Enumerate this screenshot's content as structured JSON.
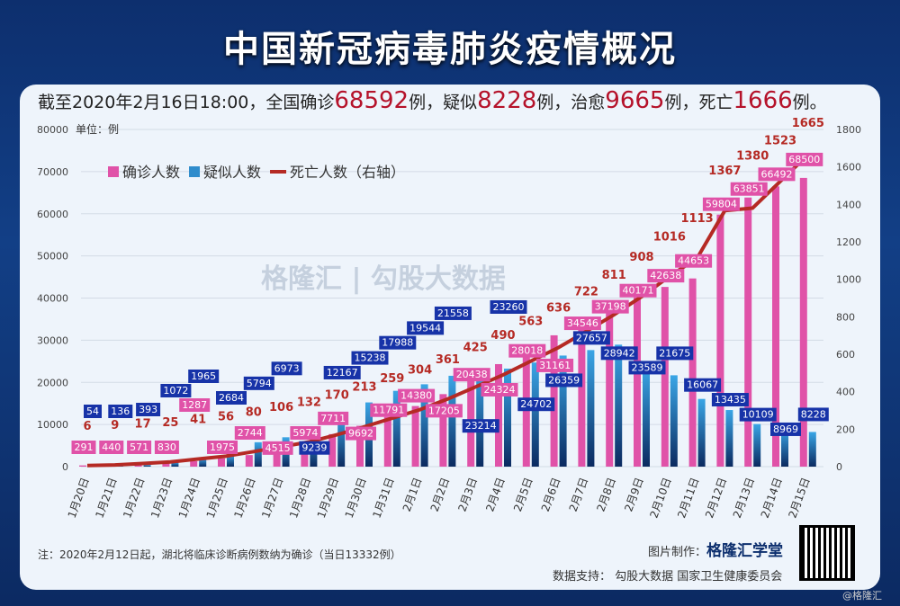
{
  "title": "中国新冠病毒肺炎疫情概况",
  "summary": {
    "prefix": "截至2020年2月16日18:00，全国确诊",
    "confirmed": "68592",
    "s1": "例，疑似",
    "suspected": "8228",
    "s2": "例，治愈",
    "cured": "9665",
    "s3": "例，死亡",
    "deaths": "1666",
    "s4": "例。"
  },
  "note": "注：2020年2月12日起，湖北将临床诊断病例数纳为确诊（当日13332例）",
  "maker_label": "图片制作：",
  "maker": "格隆汇学堂",
  "source": "数据支持：  勾股大数据  国家卫生健康委员会",
  "credit": "@格隆汇",
  "watermark": "格隆汇 | 勾股大数据",
  "chart_data": {
    "type": "bar",
    "unit_label": "单位：例",
    "categories": [
      "1月20日",
      "1月21日",
      "1月22日",
      "1月23日",
      "1月24日",
      "1月25日",
      "1月26日",
      "1月27日",
      "1月28日",
      "1月29日",
      "1月30日",
      "1月31日",
      "2月1日",
      "2月2日",
      "2月3日",
      "2月4日",
      "2月5日",
      "2月6日",
      "2月7日",
      "2月8日",
      "2月9日",
      "2月10日",
      "2月11日",
      "2月12日",
      "2月13日",
      "2月14日",
      "2月15日"
    ],
    "ylim": [
      0,
      80000
    ],
    "y_ticks": [
      0,
      10000,
      20000,
      30000,
      40000,
      50000,
      60000,
      70000,
      80000
    ],
    "y2lim": [
      0,
      1800
    ],
    "y2_ticks": [
      0,
      200,
      400,
      600,
      800,
      1000,
      1200,
      1400,
      1600,
      1800
    ],
    "legend_position": "top-left",
    "series": [
      {
        "name": "确诊人数",
        "type": "bar",
        "color": "#e052a8",
        "values": [
          291,
          440,
          571,
          830,
          1287,
          1975,
          2744,
          4515,
          5974,
          7711,
          9692,
          11791,
          14380,
          17205,
          20438,
          24324,
          28018,
          31161,
          34546,
          37198,
          40171,
          42638,
          44653,
          59804,
          63851,
          66492,
          68500
        ]
      },
      {
        "name": "疑似人数",
        "type": "bar",
        "color": "#2f9bd9",
        "values": [
          54,
          136,
          393,
          1072,
          1965,
          2684,
          5794,
          6973,
          9239,
          12167,
          15238,
          17988,
          19544,
          21558,
          23214,
          23260,
          24702,
          26359,
          27657,
          28942,
          23589,
          21675,
          16067,
          13435,
          10109,
          8969,
          8228
        ]
      },
      {
        "name": "死亡人数（右轴）",
        "type": "line",
        "axis": "right",
        "color": "#b52a24",
        "values": [
          6,
          9,
          17,
          25,
          41,
          56,
          80,
          106,
          132,
          170,
          213,
          259,
          304,
          361,
          425,
          490,
          563,
          636,
          722,
          811,
          908,
          1016,
          1113,
          1367,
          1380,
          1523,
          1665
        ]
      }
    ]
  }
}
